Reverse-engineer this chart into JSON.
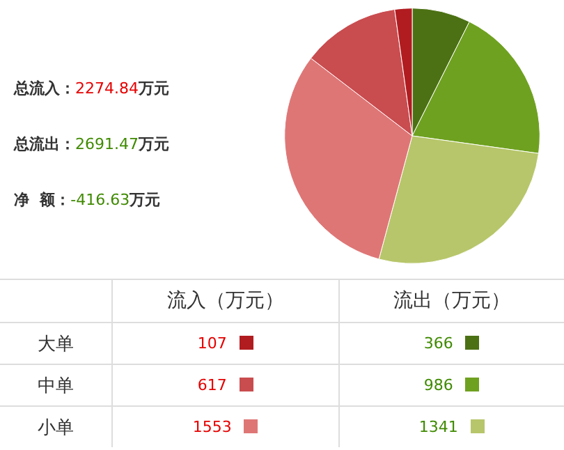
{
  "chart_data": [
    {
      "type": "pie",
      "categories": [
        null,
        null,
        null,
        null,
        null,
        null
      ],
      "values": [
        7.4,
        19.8,
        27.0,
        31.2,
        12.4,
        2.2
      ],
      "colors": [
        "#4c7114",
        "#6fa120",
        "#b7c66a",
        "#df7676",
        "#c94c4f",
        "#b11c20"
      ],
      "annotations": [
        "总流入：2274.84万元",
        "总流出：2691.47万元",
        "净  额：-416.63万元"
      ]
    },
    {
      "type": "other",
      "categories": [
        "大单",
        "中单",
        "小单"
      ],
      "series": [
        {
          "name": "流入（万元）",
          "values": [
            107,
            617,
            1553
          ],
          "colors": [
            "#b11c20",
            "#c94c4f",
            "#df7676"
          ]
        },
        {
          "name": "流出（万元）",
          "values": [
            366,
            986,
            1341
          ],
          "colors": [
            "#4c7114",
            "#6fa120",
            "#b7c66a"
          ]
        }
      ],
      "data_labels": true
    }
  ]
}
